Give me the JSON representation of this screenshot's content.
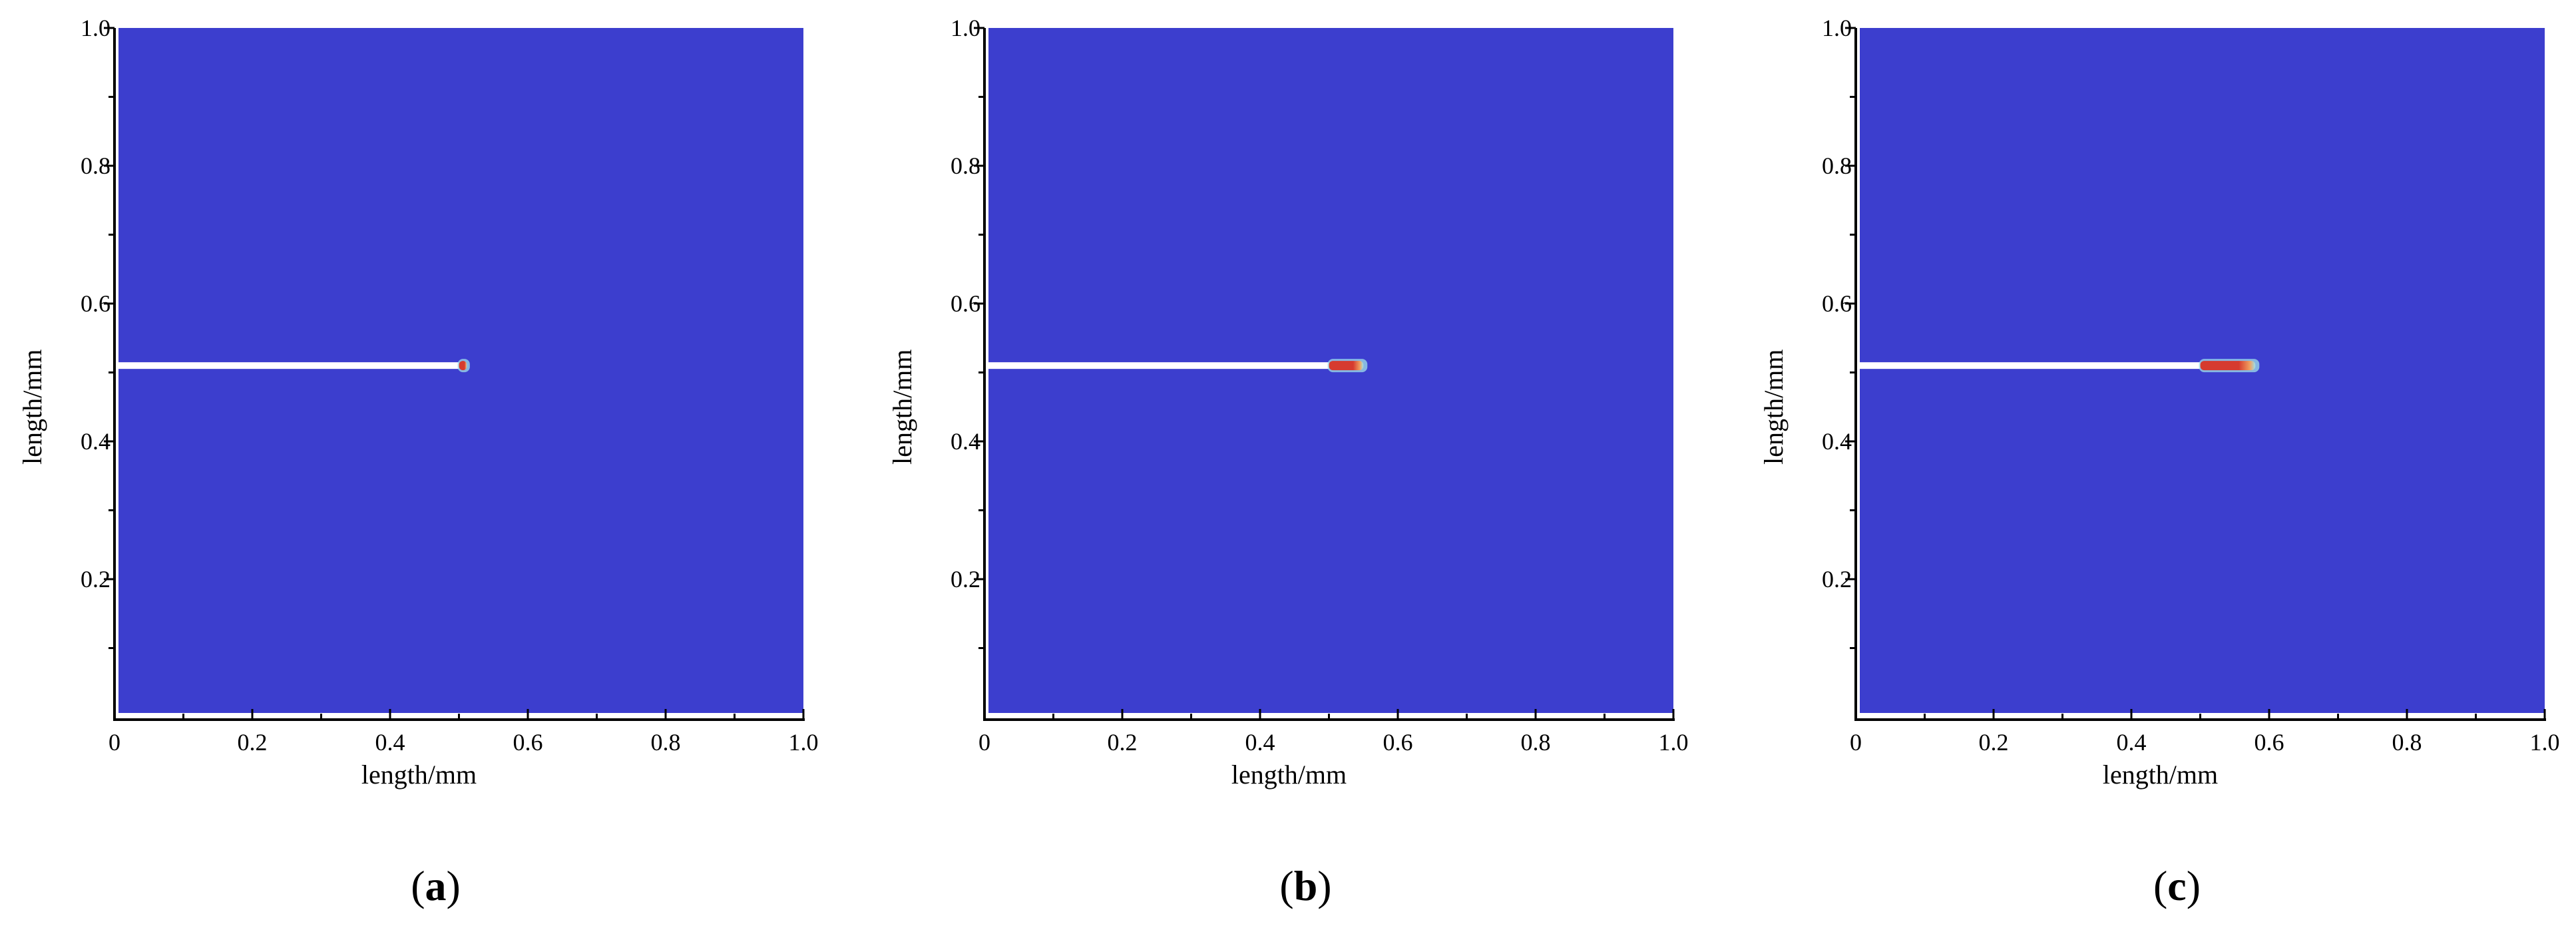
{
  "colors": {
    "field": "#3c3ece",
    "crack": "#ffffff",
    "tip_hot": "#d63b2f",
    "tip_warm": "#f0a060",
    "tip_halo": "#9fe0e8"
  },
  "chart_data": [
    {
      "type": "heatmap",
      "panel_label": "(a)",
      "panel_letter": "a",
      "xlabel": "length/mm",
      "ylabel": "length/mm",
      "xlim": [
        0,
        1.0
      ],
      "ylim": [
        0,
        1.0
      ],
      "xticks": [
        0,
        0.2,
        0.4,
        0.6,
        0.8,
        1.0
      ],
      "xtick_labels": [
        "0",
        "0.2",
        "0.4",
        "0.6",
        "0.8",
        "1.0"
      ],
      "yticks": [
        0.2,
        0.4,
        0.6,
        0.8,
        1.0
      ],
      "ytick_labels": [
        "0.2",
        "0.4",
        "0.6",
        "0.8",
        "1.0"
      ],
      "crack": {
        "y": 0.51,
        "x_start": 0,
        "x_tip": 0.5,
        "x_end": 0.51
      }
    },
    {
      "type": "heatmap",
      "panel_label": "(b)",
      "panel_letter": "b",
      "xlabel": "length/mm",
      "ylabel": "length/mm",
      "xlim": [
        0,
        1.0
      ],
      "ylim": [
        0,
        1.0
      ],
      "xticks": [
        0,
        0.2,
        0.4,
        0.6,
        0.8,
        1.0
      ],
      "xtick_labels": [
        "0",
        "0.2",
        "0.4",
        "0.6",
        "0.8",
        "1.0"
      ],
      "yticks": [
        0.2,
        0.4,
        0.6,
        0.8,
        1.0
      ],
      "ytick_labels": [
        "0.2",
        "0.4",
        "0.6",
        "0.8",
        "1.0"
      ],
      "crack": {
        "y": 0.51,
        "x_start": 0,
        "x_tip": 0.5,
        "x_end": 0.55
      }
    },
    {
      "type": "heatmap",
      "panel_label": "(c)",
      "panel_letter": "c",
      "xlabel": "length/mm",
      "ylabel": "length/mm",
      "xlim": [
        0,
        1.0
      ],
      "ylim": [
        0,
        1.0
      ],
      "xticks": [
        0,
        0.2,
        0.4,
        0.6,
        0.8,
        1.0
      ],
      "xtick_labels": [
        "0",
        "0.2",
        "0.4",
        "0.6",
        "0.8",
        "1.0"
      ],
      "yticks": [
        0.2,
        0.4,
        0.6,
        0.8,
        1.0
      ],
      "ytick_labels": [
        "0.2",
        "0.4",
        "0.6",
        "0.8",
        "1.0"
      ],
      "crack": {
        "y": 0.51,
        "x_start": 0,
        "x_tip": 0.5,
        "x_end": 0.58
      }
    }
  ]
}
